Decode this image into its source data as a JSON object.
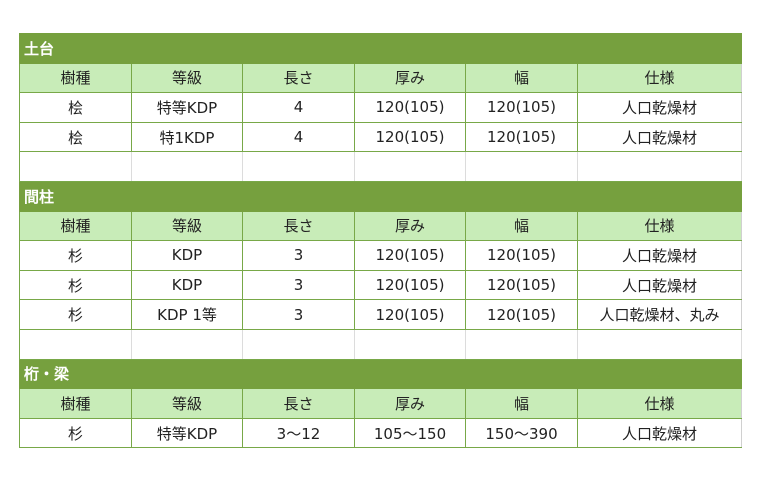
{
  "headers": [
    "樹種",
    "等級",
    "長さ",
    "厚み",
    "幅",
    "仕様"
  ],
  "sections": [
    {
      "title": "土台",
      "rows": [
        [
          "桧",
          "特等KDP",
          "4",
          "120(105)",
          "120(105)",
          "人口乾燥材"
        ],
        [
          "桧",
          "特1KDP",
          "4",
          "120(105)",
          "120(105)",
          "人口乾燥材"
        ]
      ],
      "trailing_empty": true
    },
    {
      "title": "間柱",
      "rows": [
        [
          "杉",
          "KDP",
          "3",
          "120(105)",
          "120(105)",
          "人口乾燥材"
        ],
        [
          "杉",
          "KDP",
          "3",
          "120(105)",
          "120(105)",
          "人口乾燥材"
        ],
        [
          "杉",
          "KDP 1等",
          "3",
          "120(105)",
          "120(105)",
          "人口乾燥材、丸み"
        ]
      ],
      "trailing_empty": true
    },
    {
      "title": "桁・梁",
      "rows": [
        [
          "杉",
          "特等KDP",
          "3～12",
          "105～150",
          "150～390",
          "人口乾燥材"
        ]
      ],
      "trailing_empty": false
    }
  ],
  "colors": {
    "title_bg": "#76a03e",
    "header_bg": "#c8ecb8",
    "border": "#78a848"
  }
}
